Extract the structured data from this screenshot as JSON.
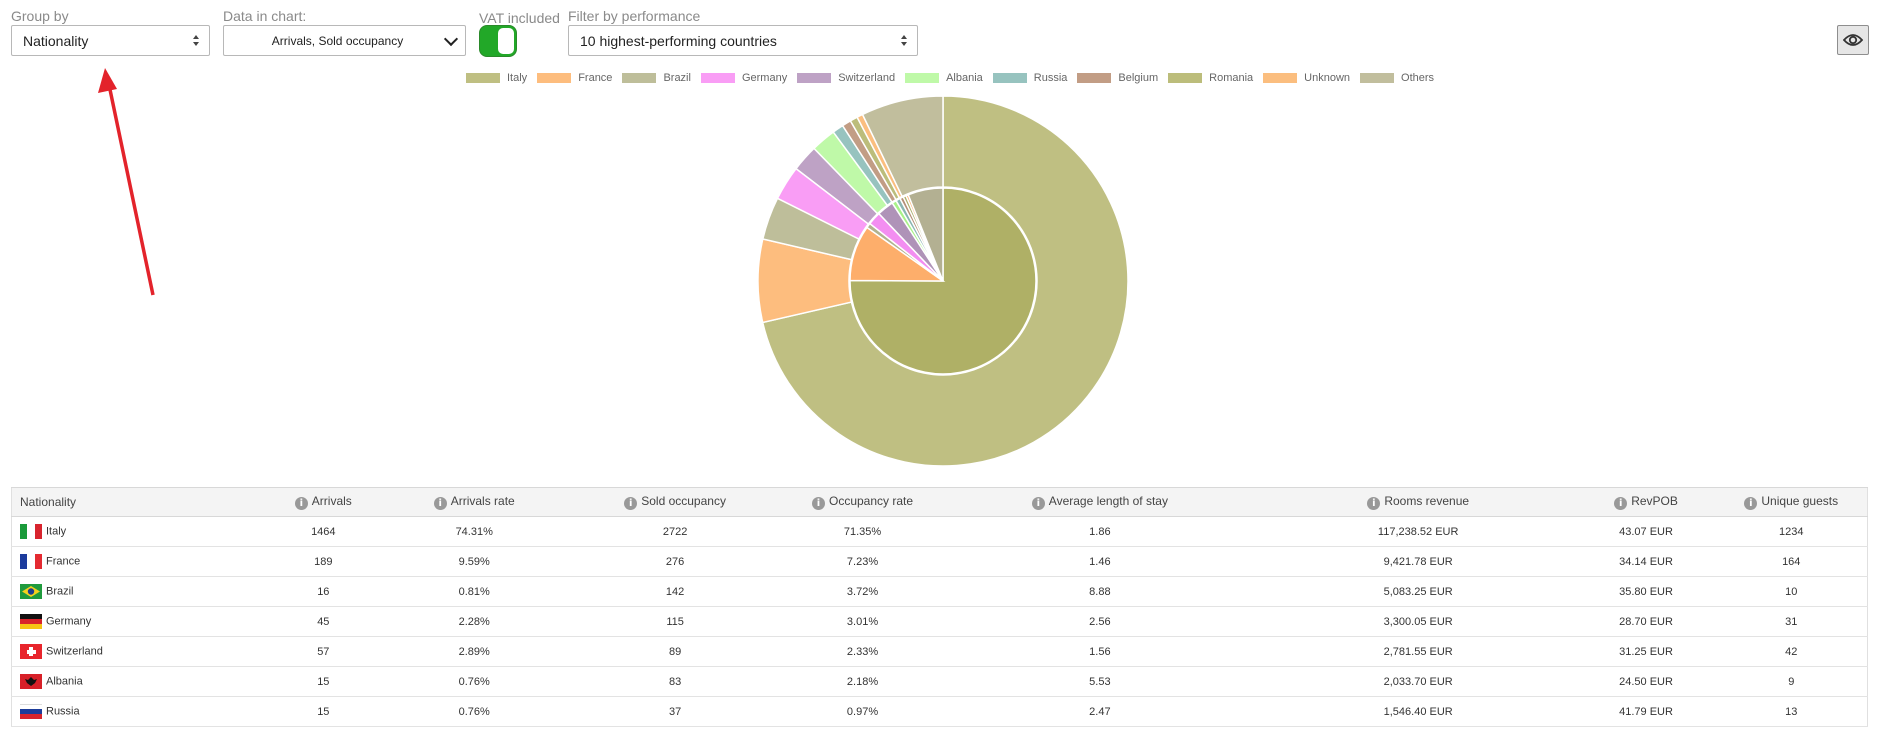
{
  "controls": {
    "group_by_label": "Group by",
    "group_by_value": "Nationality",
    "data_in_chart_label": "Data in chart:",
    "data_in_chart_value": "Arrivals, Sold occupancy",
    "vat_label": "VAT included",
    "vat_on": true,
    "filter_label": "Filter by performance",
    "filter_value": "10 highest-performing countries"
  },
  "view_icon": "eye-icon",
  "chart_data": {
    "type": "pie",
    "variant": "nested-donut",
    "legend": [
      "Italy",
      "France",
      "Brazil",
      "Germany",
      "Switzerland",
      "Albania",
      "Russia",
      "Belgium",
      "Romania",
      "Unknown",
      "Others"
    ],
    "colors": [
      "#bfbf82",
      "#fdbd7e",
      "#bebe9a",
      "#f99df5",
      "#bea2c5",
      "#bff9a8",
      "#97c3bf",
      "#c29d85",
      "#bcbd7b",
      "#fbbe7f",
      "#c1be9d"
    ],
    "inner_colors": [
      "#afb066",
      "#fdae6b",
      "#b1b28f",
      "#f38ef1",
      "#af93b8",
      "#a8f289",
      "#8ab6b2",
      "#b58f77",
      "#aeaf6d",
      "#fbaf6f",
      "#b3b092"
    ],
    "series": [
      {
        "name": "Sold occupancy",
        "ring": "outer",
        "values": [
          2722,
          276,
          142,
          115,
          89,
          83,
          37,
          30,
          25,
          20,
          273
        ]
      },
      {
        "name": "Arrivals",
        "ring": "inner",
        "values": [
          1464,
          189,
          16,
          45,
          57,
          15,
          15,
          12,
          10,
          8,
          119
        ]
      }
    ],
    "legend_position": "top"
  },
  "table": {
    "columns": [
      {
        "label": "Nationality",
        "info": false
      },
      {
        "label": "Arrivals",
        "info": true
      },
      {
        "label": "Arrivals rate",
        "info": true
      },
      {
        "label": "Sold occupancy",
        "info": true
      },
      {
        "label": "Occupancy rate",
        "info": true
      },
      {
        "label": "Average length of stay",
        "info": true
      },
      {
        "label": "Rooms revenue",
        "info": true
      },
      {
        "label": "RevPOB",
        "info": true
      },
      {
        "label": "Unique guests",
        "info": true
      }
    ],
    "rows": [
      {
        "country": "Italy",
        "flag": "italy",
        "cells": [
          "1464",
          "74.31%",
          "2722",
          "71.35%",
          "1.86",
          "117,238.52 EUR",
          "43.07 EUR",
          "1234"
        ]
      },
      {
        "country": "France",
        "flag": "france",
        "cells": [
          "189",
          "9.59%",
          "276",
          "7.23%",
          "1.46",
          "9,421.78 EUR",
          "34.14 EUR",
          "164"
        ]
      },
      {
        "country": "Brazil",
        "flag": "brazil",
        "cells": [
          "16",
          "0.81%",
          "142",
          "3.72%",
          "8.88",
          "5,083.25 EUR",
          "35.80 EUR",
          "10"
        ]
      },
      {
        "country": "Germany",
        "flag": "germany",
        "cells": [
          "45",
          "2.28%",
          "115",
          "3.01%",
          "2.56",
          "3,300.05 EUR",
          "28.70 EUR",
          "31"
        ]
      },
      {
        "country": "Switzerland",
        "flag": "switzerland",
        "cells": [
          "57",
          "2.89%",
          "89",
          "2.33%",
          "1.56",
          "2,781.55 EUR",
          "31.25 EUR",
          "42"
        ]
      },
      {
        "country": "Albania",
        "flag": "albania",
        "cells": [
          "15",
          "0.76%",
          "83",
          "2.18%",
          "5.53",
          "2,033.70 EUR",
          "24.50 EUR",
          "9"
        ]
      },
      {
        "country": "Russia",
        "flag": "russia",
        "cells": [
          "15",
          "0.76%",
          "37",
          "0.97%",
          "2.47",
          "1,546.40 EUR",
          "41.79 EUR",
          "13"
        ]
      }
    ]
  }
}
